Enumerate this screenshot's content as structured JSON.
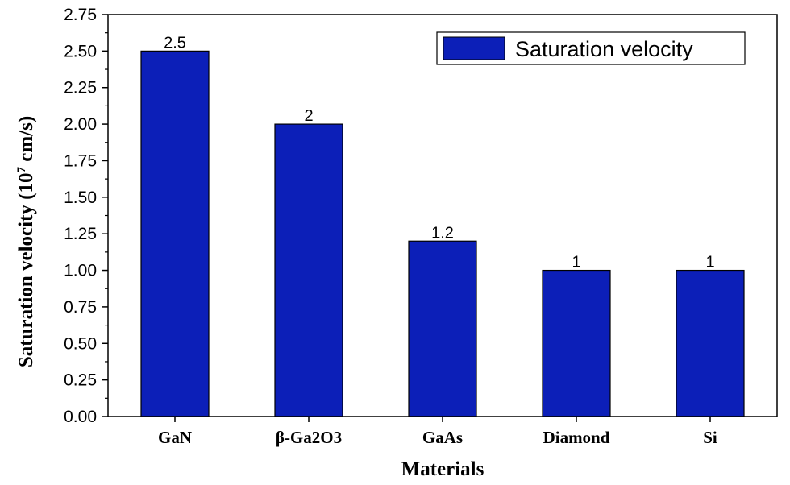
{
  "chart_data": {
    "type": "bar",
    "categories": [
      "GaN",
      "β-Ga2O3",
      "GaAs",
      "Diamond",
      "Si"
    ],
    "series": [
      {
        "name": "Saturation velocity",
        "values": [
          2.5,
          2,
          1.2,
          1,
          1
        ],
        "color": "#0c1fb8"
      }
    ],
    "data_labels": [
      "2.5",
      "2",
      "1.2",
      "1",
      "1"
    ],
    "xlabel": "Materials",
    "ylabel": "Saturation velocity (10",
    "ylabel_superscript": "7",
    "ylabel_suffix": " cm/s)",
    "ylim": [
      0,
      2.75
    ],
    "yticks": [
      "0.00",
      "0.25",
      "0.50",
      "0.75",
      "1.00",
      "1.25",
      "1.50",
      "1.75",
      "2.00",
      "2.25",
      "2.50",
      "2.75"
    ],
    "legend": {
      "label": "Saturation velocity",
      "position": "top-right"
    },
    "grid": false
  }
}
